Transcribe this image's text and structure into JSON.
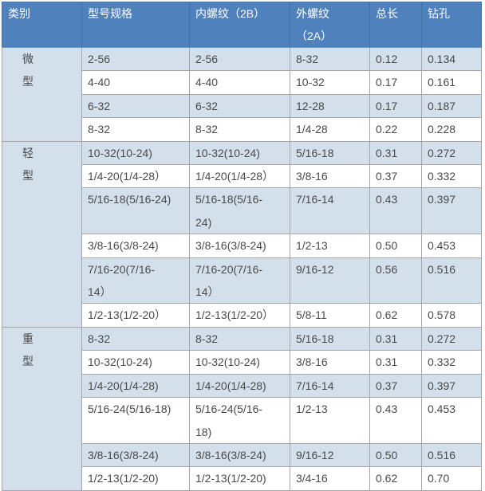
{
  "colors": {
    "header_bg": "#4f81bd",
    "header_text": "#ffffff",
    "band_row_bg": "#d4dfec",
    "plain_row_bg": "#ffffff",
    "grid_border": "#a6a6a6",
    "cell_text": "#4a4a4a"
  },
  "table": {
    "columns": [
      {
        "label": "类别"
      },
      {
        "label": "型号规格"
      },
      {
        "label": "内螺纹（2B）"
      },
      {
        "label": "外螺纹\n（2A）"
      },
      {
        "label": "总长"
      },
      {
        "label": "钻孔"
      }
    ],
    "groups": [
      {
        "category": "微\n型",
        "rows": [
          [
            "2-56",
            "2-56",
            "8-32",
            "0.12",
            "0.134"
          ],
          [
            "4-40",
            "4-40",
            "10-32",
            "0.17",
            "0.161"
          ],
          [
            "6-32",
            "6-32",
            "12-28",
            "0.17",
            "0.187"
          ],
          [
            "8-32",
            "8-32",
            "1/4-28",
            "0.22",
            "0.228"
          ]
        ]
      },
      {
        "category": "轻\n型",
        "rows": [
          [
            "10-32(10-24)",
            "10-32(10-24)",
            "5/16-18",
            "0.31",
            "0.272"
          ],
          [
            "1/4-20(1/4-28）",
            "1/4-20(1/4-28）",
            "3/8-16",
            "0.37",
            "0.332"
          ],
          [
            "5/16-18(5/16-24)",
            "5/16-18(5/16-\n24)",
            "7/16-14",
            "0.43",
            "0.397"
          ],
          [
            "3/8-16(3/8-24)",
            "3/8-16(3/8-24)",
            "1/2-13",
            "0.50",
            "0.453"
          ],
          [
            "7/16-20(7/16-\n14）",
            "7/16-20(7/16-\n14）",
            "9/16-12",
            "0.56",
            "0.516"
          ],
          [
            "1/2-13(1/2-20）",
            "1/2-13(1/2-20）",
            "5/8-11",
            "0.62",
            "0.578"
          ]
        ]
      },
      {
        "category": "重\n型",
        "rows": [
          [
            "8-32",
            "8-32",
            "5/16-18",
            "0.31",
            "0.272"
          ],
          [
            "10-32(10-24)",
            "10-32(10-24)",
            "3/8-16",
            "0.31",
            "0.332"
          ],
          [
            "1/4-20(1/4-28)",
            "1/4-20(1/4-28)",
            "7/16-14",
            "0.37",
            "0.397"
          ],
          [
            "5/16-24(5/16-18)",
            "5/16-24(5/16-\n18)",
            "1/2-13",
            "0.43",
            "0.453"
          ],
          [
            "3/8-16(3/8-24)",
            "3/8-16(3/8-24)",
            "9/16-12",
            "0.50",
            "0.516"
          ],
          [
            "1/2-13(1/2-20)",
            "1/2-13(1/2-20)",
            "3/4-16",
            "0.62",
            "0.70"
          ]
        ]
      }
    ]
  },
  "chart_data": {
    "type": "table",
    "title": "",
    "columns": [
      "类别",
      "型号规格",
      "内螺纹（2B）",
      "外螺纹（2A）",
      "总长",
      "钻孔"
    ],
    "rows": [
      [
        "微型",
        "2-56",
        "2-56",
        "8-32",
        0.12,
        0.134
      ],
      [
        "微型",
        "4-40",
        "4-40",
        "10-32",
        0.17,
        0.161
      ],
      [
        "微型",
        "6-32",
        "6-32",
        "12-28",
        0.17,
        0.187
      ],
      [
        "微型",
        "8-32",
        "8-32",
        "1/4-28",
        0.22,
        0.228
      ],
      [
        "轻型",
        "10-32(10-24)",
        "10-32(10-24)",
        "5/16-18",
        0.31,
        0.272
      ],
      [
        "轻型",
        "1/4-20(1/4-28)",
        "1/4-20(1/4-28)",
        "3/8-16",
        0.37,
        0.332
      ],
      [
        "轻型",
        "5/16-18(5/16-24)",
        "5/16-18(5/16-24)",
        "7/16-14",
        0.43,
        0.397
      ],
      [
        "轻型",
        "3/8-16(3/8-24)",
        "3/8-16(3/8-24)",
        "1/2-13",
        0.5,
        0.453
      ],
      [
        "轻型",
        "7/16-20(7/16-14)",
        "7/16-20(7/16-14)",
        "9/16-12",
        0.56,
        0.516
      ],
      [
        "轻型",
        "1/2-13(1/2-20)",
        "1/2-13(1/2-20)",
        "5/8-11",
        0.62,
        0.578
      ],
      [
        "重型",
        "8-32",
        "8-32",
        "5/16-18",
        0.31,
        0.272
      ],
      [
        "重型",
        "10-32(10-24)",
        "10-32(10-24)",
        "3/8-16",
        0.31,
        0.332
      ],
      [
        "重型",
        "1/4-20(1/4-28)",
        "1/4-20(1/4-28)",
        "7/16-14",
        0.37,
        0.397
      ],
      [
        "重型",
        "5/16-24(5/16-18)",
        "5/16-24(5/16-18)",
        "1/2-13",
        0.43,
        0.453
      ],
      [
        "重型",
        "3/8-16(3/8-24)",
        "3/8-16(3/8-24)",
        "9/16-12",
        0.5,
        0.516
      ],
      [
        "重型",
        "1/2-13(1/2-20)",
        "1/2-13(1/2-20)",
        "3/4-16",
        0.62,
        0.7
      ]
    ]
  }
}
